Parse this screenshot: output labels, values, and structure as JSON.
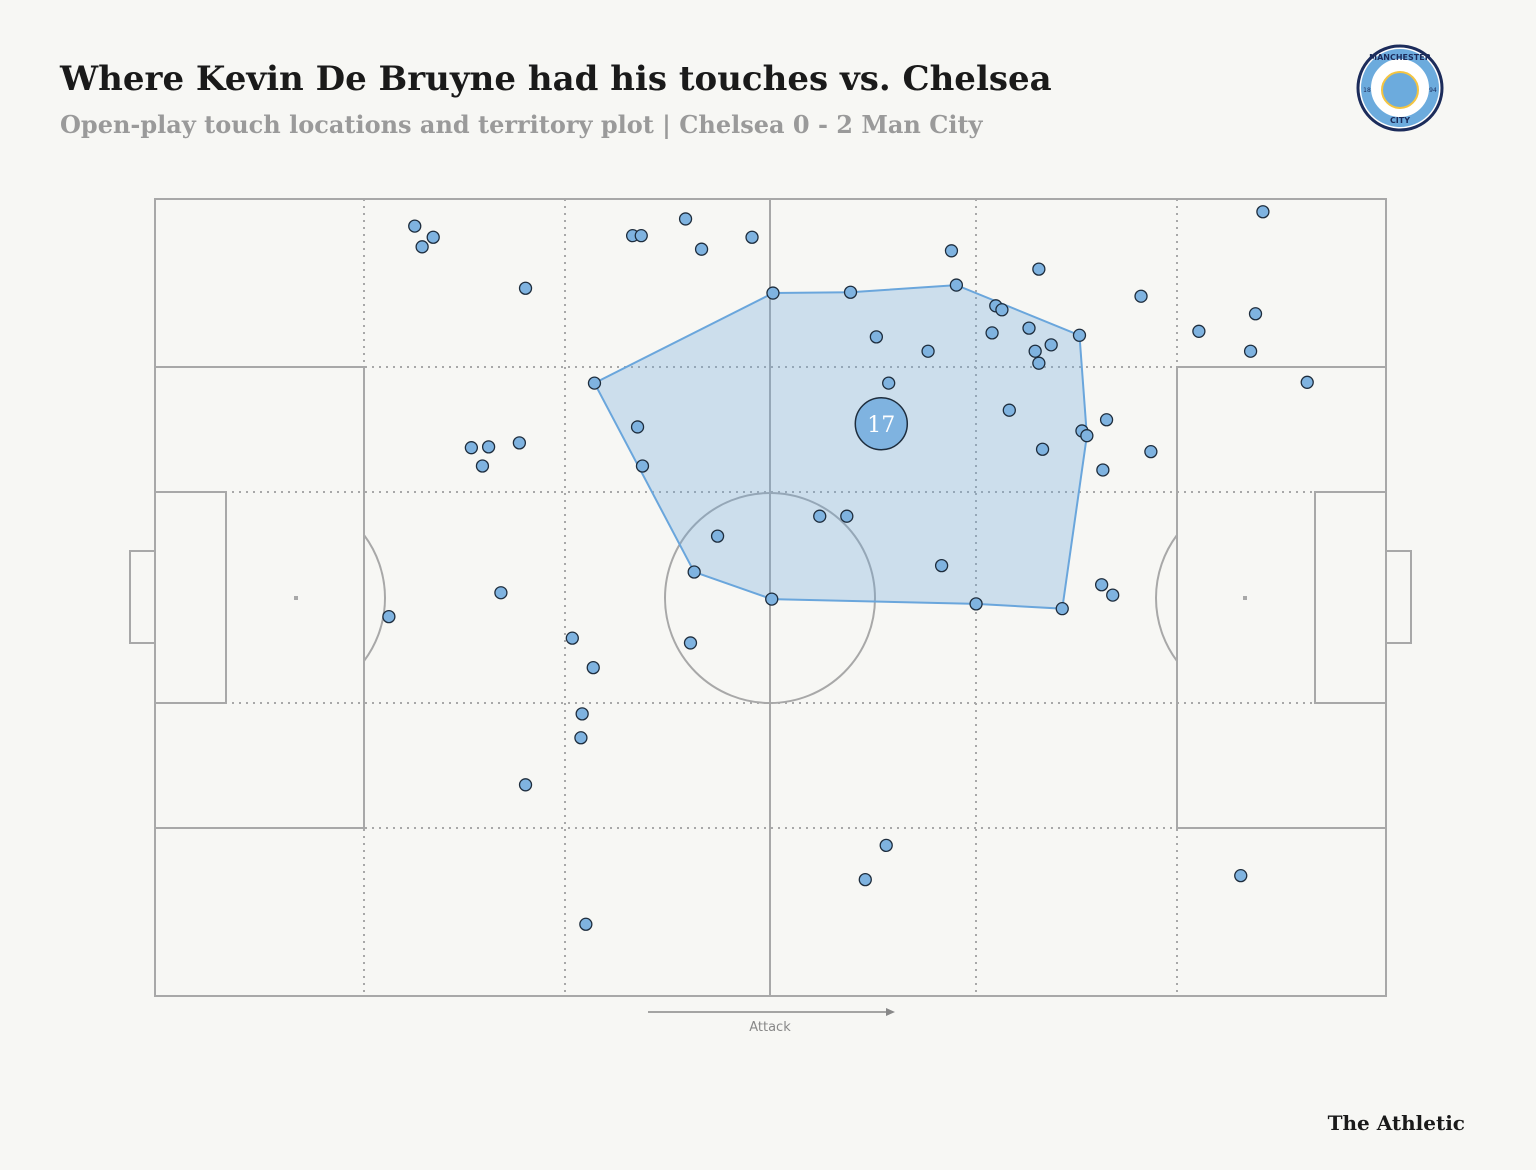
{
  "chart_data": {
    "type": "scatter",
    "title": "Where Kevin De Bruyne had his touches vs. Chelsea",
    "subtitle": "Open-play touch locations and territory plot |  Chelsea 0 - 2 Man City",
    "direction_label": "Attack",
    "brand": "The Athletic",
    "logo": {
      "top": "MANCHESTER",
      "bottom": "CITY",
      "left": "18",
      "right": "94"
    },
    "xlim": [
      0,
      100
    ],
    "ylim": [
      0,
      100
    ],
    "color": "#7fb3e0",
    "territory_color": "#6aa6dc",
    "x": [
      21.1,
      22.6,
      21.7,
      30.1,
      38.8,
      39.5,
      43.1,
      44.4,
      48.5,
      90.0,
      64.7,
      71.8,
      80.1,
      50.2,
      56.5,
      65.1,
      68.3,
      68.8,
      71.0,
      68.0,
      75.1,
      84.8,
      89.4,
      58.6,
      62.8,
      71.5,
      72.8,
      71.8,
      89.0,
      35.7,
      59.6,
      93.6,
      69.4,
      77.3,
      39.2,
      75.3,
      75.7,
      25.7,
      27.1,
      29.6,
      26.6,
      72.1,
      80.9,
      39.6,
      77.0,
      54.0,
      56.2,
      45.7,
      63.9,
      43.8,
      76.9,
      77.8,
      50.1,
      66.7,
      73.7,
      28.1,
      19.0,
      33.9,
      43.5,
      35.6,
      34.7,
      34.6,
      30.1,
      59.4,
      57.7,
      88.2,
      35.0
    ],
    "y": [
      96.6,
      95.2,
      94.0,
      88.8,
      95.4,
      95.4,
      97.5,
      93.7,
      95.2,
      98.4,
      93.5,
      91.2,
      87.8,
      88.2,
      88.3,
      89.2,
      86.6,
      86.1,
      83.8,
      83.2,
      82.9,
      83.4,
      85.6,
      82.7,
      80.9,
      80.9,
      81.7,
      79.4,
      80.9,
      76.9,
      76.9,
      77.0,
      73.5,
      72.3,
      71.4,
      70.9,
      70.3,
      68.8,
      68.9,
      69.4,
      66.5,
      68.6,
      68.3,
      66.5,
      66.0,
      60.2,
      60.2,
      57.7,
      54.0,
      53.2,
      51.6,
      50.3,
      49.8,
      49.2,
      48.6,
      50.6,
      47.6,
      44.9,
      44.3,
      41.2,
      35.4,
      32.4,
      26.5,
      18.9,
      14.6,
      15.1,
      9.0
    ],
    "territory": {
      "x": [
        50.2,
        56.5,
        65.1,
        75.1,
        75.7,
        73.7,
        66.7,
        50.1,
        43.8,
        35.7
      ],
      "y": [
        88.2,
        88.3,
        89.2,
        82.9,
        70.3,
        48.6,
        49.2,
        49.8,
        53.2,
        76.9
      ]
    },
    "average": {
      "label": "17",
      "x": 59.0,
      "y": 71.8
    }
  }
}
